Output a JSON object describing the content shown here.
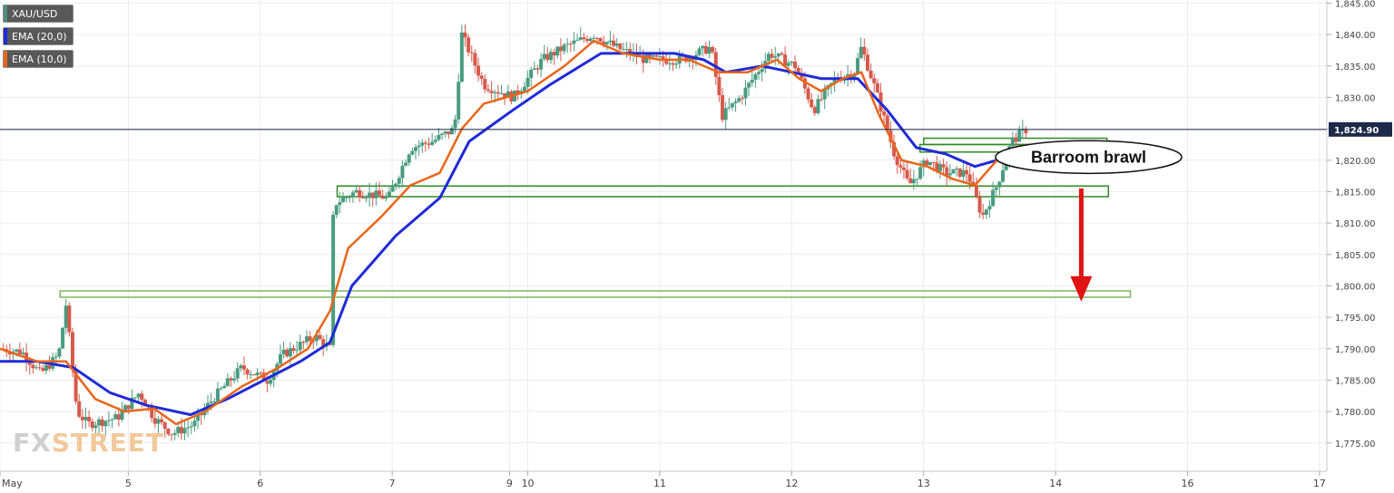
{
  "legend": {
    "items": [
      {
        "label": "XAU/USD",
        "color": "#4a8f7a"
      },
      {
        "label": "EMA (20,0)",
        "color": "#1f2bd6"
      },
      {
        "label": "EMA (10,0)",
        "color": "#e8661a"
      }
    ]
  },
  "logo": {
    "prefix": "FX",
    "suffix": "STREET"
  },
  "chart_data": {
    "type": "candlestick",
    "symbol": "XAU/USD",
    "current_price_label": "1,824.90",
    "current_price": 1824.9,
    "annotation": "Barroom brawl",
    "y_range": [
      1770.5,
      1845.5
    ],
    "y_ticks": [
      {
        "v": 1845,
        "label": "1,845.00"
      },
      {
        "v": 1840,
        "label": "1,840.00"
      },
      {
        "v": 1835,
        "label": "1,835.00"
      },
      {
        "v": 1830,
        "label": "1,830.00"
      },
      {
        "v": 1825,
        "label": "1,825.00"
      },
      {
        "v": 1820,
        "label": "1,820.00"
      },
      {
        "v": 1815,
        "label": "1,815.00"
      },
      {
        "v": 1810,
        "label": "1,810.00"
      },
      {
        "v": 1805,
        "label": "1,805.00"
      },
      {
        "v": 1800,
        "label": "1,800.00"
      },
      {
        "v": 1795,
        "label": "1,795.00"
      },
      {
        "v": 1790,
        "label": "1,790.00"
      },
      {
        "v": 1785,
        "label": "1,785.00"
      },
      {
        "v": 1780,
        "label": "1,780.00"
      },
      {
        "v": 1775,
        "label": "1,775.00"
      }
    ],
    "x_range": [
      0,
      18.1
    ],
    "x_ticks": [
      {
        "t": 0,
        "label": "May"
      },
      {
        "t": 1.75,
        "label": "5"
      },
      {
        "t": 3.55,
        "label": "6"
      },
      {
        "t": 5.35,
        "label": "7"
      },
      {
        "t": 6.95,
        "label": "9"
      },
      {
        "t": 7.2,
        "label": "10"
      },
      {
        "t": 9.0,
        "label": "11"
      },
      {
        "t": 10.8,
        "label": "12"
      },
      {
        "t": 12.6,
        "label": "13"
      },
      {
        "t": 14.4,
        "label": "14"
      },
      {
        "t": 16.2,
        "label": "16"
      },
      {
        "t": 18.0,
        "label": "17"
      }
    ],
    "price_path": [
      [
        0,
        1790
      ],
      [
        0.3,
        1789.5
      ],
      [
        0.55,
        1786
      ],
      [
        0.8,
        1789
      ],
      [
        0.9,
        1797
      ],
      [
        1.05,
        1780
      ],
      [
        1.2,
        1778
      ],
      [
        1.6,
        1779
      ],
      [
        1.9,
        1783
      ],
      [
        2.1,
        1779
      ],
      [
        2.35,
        1776.5
      ],
      [
        2.65,
        1778
      ],
      [
        2.9,
        1782
      ],
      [
        3.3,
        1787
      ],
      [
        3.65,
        1785
      ],
      [
        3.85,
        1789
      ],
      [
        4.3,
        1792
      ],
      [
        4.5,
        1790
      ],
      [
        4.55,
        1813
      ],
      [
        4.85,
        1815
      ],
      [
        5.3,
        1814
      ],
      [
        5.6,
        1822
      ],
      [
        5.9,
        1823
      ],
      [
        6.2,
        1825
      ],
      [
        6.3,
        1840
      ],
      [
        6.6,
        1832
      ],
      [
        7.0,
        1830
      ],
      [
        7.4,
        1836
      ],
      [
        7.7,
        1838
      ],
      [
        8.1,
        1840
      ],
      [
        8.4,
        1838
      ],
      [
        8.8,
        1836
      ],
      [
        9.3,
        1836
      ],
      [
        9.7,
        1838
      ],
      [
        9.85,
        1827
      ],
      [
        10.1,
        1830
      ],
      [
        10.5,
        1837
      ],
      [
        10.85,
        1835
      ],
      [
        11.1,
        1828
      ],
      [
        11.4,
        1833
      ],
      [
        11.65,
        1834
      ],
      [
        11.75,
        1838
      ],
      [
        11.95,
        1831
      ],
      [
        12.2,
        1821
      ],
      [
        12.4,
        1816
      ],
      [
        12.65,
        1820
      ],
      [
        12.9,
        1818
      ],
      [
        13.2,
        1818
      ],
      [
        13.4,
        1811
      ],
      [
        13.6,
        1816
      ],
      [
        13.8,
        1823
      ],
      [
        14.0,
        1824.9
      ]
    ],
    "ema10": [
      [
        0,
        1790
      ],
      [
        0.5,
        1788
      ],
      [
        0.9,
        1788
      ],
      [
        1.3,
        1782
      ],
      [
        1.7,
        1780
      ],
      [
        2.1,
        1780.5
      ],
      [
        2.4,
        1778
      ],
      [
        2.8,
        1780
      ],
      [
        3.3,
        1784
      ],
      [
        3.8,
        1787
      ],
      [
        4.2,
        1790
      ],
      [
        4.5,
        1796
      ],
      [
        4.75,
        1806
      ],
      [
        5.2,
        1811
      ],
      [
        5.6,
        1816
      ],
      [
        6.0,
        1818
      ],
      [
        6.3,
        1825
      ],
      [
        6.6,
        1829
      ],
      [
        7.2,
        1831
      ],
      [
        7.7,
        1835
      ],
      [
        8.1,
        1839
      ],
      [
        8.5,
        1837
      ],
      [
        9.0,
        1836
      ],
      [
        9.4,
        1836
      ],
      [
        9.8,
        1834
      ],
      [
        10.2,
        1834
      ],
      [
        10.6,
        1836
      ],
      [
        10.9,
        1833
      ],
      [
        11.2,
        1831
      ],
      [
        11.5,
        1833
      ],
      [
        11.75,
        1834
      ],
      [
        12.0,
        1827
      ],
      [
        12.3,
        1820
      ],
      [
        12.65,
        1819
      ],
      [
        13.0,
        1817
      ],
      [
        13.3,
        1816
      ],
      [
        13.6,
        1820
      ],
      [
        14.0,
        1822.5
      ]
    ],
    "ema20": [
      [
        0,
        1788
      ],
      [
        0.5,
        1788
      ],
      [
        1.0,
        1787
      ],
      [
        1.5,
        1783
      ],
      [
        2.0,
        1781
      ],
      [
        2.6,
        1779.5
      ],
      [
        3.1,
        1782
      ],
      [
        3.6,
        1785
      ],
      [
        4.1,
        1788
      ],
      [
        4.5,
        1791
      ],
      [
        4.8,
        1800
      ],
      [
        5.4,
        1808
      ],
      [
        6.0,
        1814
      ],
      [
        6.4,
        1823
      ],
      [
        7.0,
        1828
      ],
      [
        7.5,
        1832
      ],
      [
        8.2,
        1837
      ],
      [
        8.7,
        1837
      ],
      [
        9.2,
        1837
      ],
      [
        9.6,
        1836
      ],
      [
        9.9,
        1834
      ],
      [
        10.4,
        1835
      ],
      [
        10.8,
        1834
      ],
      [
        11.2,
        1833
      ],
      [
        11.7,
        1833
      ],
      [
        12.1,
        1828
      ],
      [
        12.5,
        1822
      ],
      [
        12.9,
        1821
      ],
      [
        13.3,
        1819
      ],
      [
        13.6,
        1820
      ],
      [
        14.0,
        1822
      ]
    ],
    "zones": [
      {
        "x0": 0.82,
        "x1": 15.42,
        "y0": 1798.2,
        "y1": 1799.2,
        "color": "#7bb55c"
      },
      {
        "x0": 4.6,
        "x1": 15.12,
        "y0": 1814.2,
        "y1": 1815.9,
        "color": "#2e8b22"
      },
      {
        "x0": 12.55,
        "x1": 15.05,
        "y0": 1821.3,
        "y1": 1822.5,
        "color": "#2e8b22"
      },
      {
        "x0": 12.6,
        "x1": 15.1,
        "y0": 1822.5,
        "y1": 1823.5,
        "color": "#2e8b22"
      }
    ],
    "arrow": {
      "t": 14.75,
      "y_from": 1815.5,
      "y_to": 1797.5,
      "color": "#e01313"
    },
    "ellipse": {
      "t": 14.85,
      "y": 1820.5,
      "rx_t": 1.27,
      "ry_v": 2.6
    }
  }
}
